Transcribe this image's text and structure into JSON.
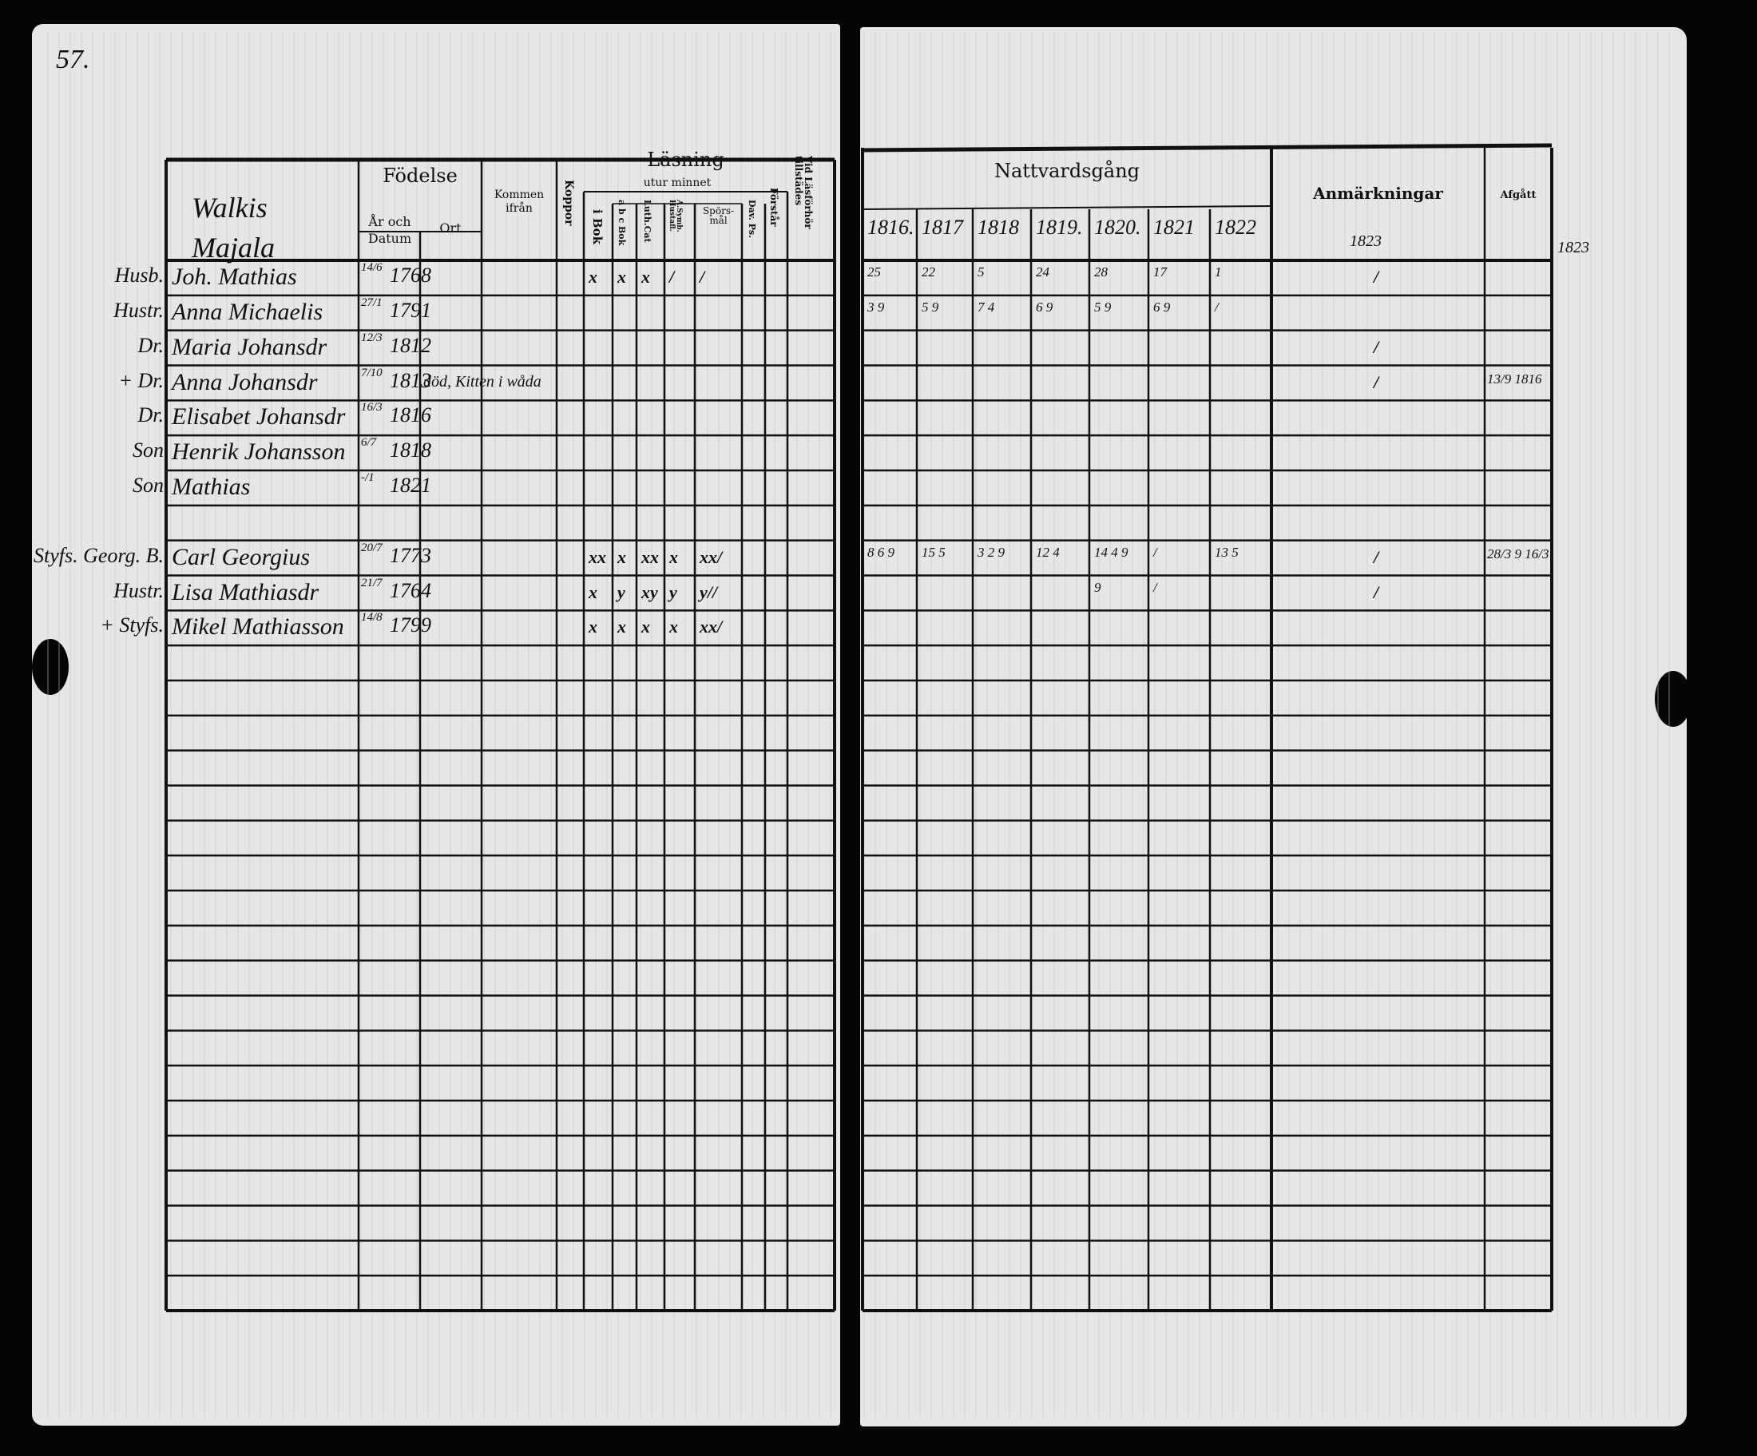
{
  "page_number": "57.",
  "household": "Walkis Majala",
  "left_header": {
    "fodelse": "Födelse",
    "ar_och_datum": "År och Datum",
    "ort": "Ort",
    "kommen_ifran": "Kommen ifrån",
    "koppor": "Koppor",
    "lasning": "Läsning",
    "utur_minnet": "utur minnet",
    "i_bok": "i Bok",
    "abc_bok": "a b c Bok",
    "luth_cat": "Luth.Cat",
    "a_symb": "A.Symb. Hustafl.",
    "sporsmal": "Spörs-mål",
    "dav_ps": "Dav. Ps.",
    "forstar": "Förstår",
    "vid_lasforhor": "Vid Läsförhör tillstädes"
  },
  "right_header": {
    "nattvardsgang": "Nattvardsgång",
    "years": [
      "1816.",
      "1817",
      "1818",
      "1819.",
      "1820.",
      "1821",
      "1822"
    ],
    "anmarkningar": "Anmärkningar",
    "anmarkningar_year": "1823",
    "afgatt": "Afgått",
    "margin_year": "1823"
  },
  "persons": [
    {
      "row": 0,
      "role": "Husb.",
      "name": "Joh. Mathias",
      "date": "14/6",
      "year": "1768",
      "note": "",
      "reading": [
        "x",
        "x",
        "x",
        "/",
        "/"
      ],
      "communion": [
        "25",
        "22",
        "5",
        "24",
        "28",
        "17",
        "1"
      ],
      "remark": "/",
      "left": ""
    },
    {
      "row": 1,
      "role": "Hustr.",
      "name": "Anna Michaelis",
      "date": "27/1",
      "year": "1791",
      "note": "",
      "reading": [],
      "communion": [
        "3 9",
        "5 9",
        "7 4",
        "6 9",
        "5 9",
        "6 9",
        "/"
      ],
      "remark": "",
      "left": ""
    },
    {
      "row": 2,
      "role": "Dr.",
      "name": "Maria Johansdr",
      "date": "12/3",
      "year": "1812",
      "note": "",
      "reading": [],
      "communion": [],
      "remark": "/",
      "left": ""
    },
    {
      "row": 3,
      "role": "+ Dr.",
      "name": "Anna Johansdr",
      "date": "7/10",
      "year": "1813",
      "note": "död, Kitten i wåda",
      "reading": [],
      "communion": [],
      "remark": "/",
      "left": "13/9 1816"
    },
    {
      "row": 4,
      "role": "Dr.",
      "name": "Elisabet Johansdr",
      "date": "16/3",
      "year": "1816",
      "note": "",
      "reading": [],
      "communion": [],
      "remark": "",
      "left": ""
    },
    {
      "row": 5,
      "role": "Son",
      "name": "Henrik Johansson",
      "date": "6/7",
      "year": "1818",
      "note": "",
      "reading": [],
      "communion": [],
      "remark": "",
      "left": ""
    },
    {
      "row": 6,
      "role": "Son",
      "name": "Mathias",
      "date": "-/1",
      "year": "1821",
      "note": "",
      "reading": [],
      "communion": [],
      "remark": "",
      "left": ""
    },
    {
      "row": 8,
      "role": "Styfs. Georg. B.",
      "name": "Carl Georgius",
      "date": "20/7",
      "year": "1773",
      "note": "",
      "reading": [
        "xx",
        "x",
        "xx",
        "x",
        "xx/"
      ],
      "communion": [
        "8 6 9",
        "15 5",
        "3 2 9",
        "12 4",
        "14 4 9",
        "/",
        "13 5"
      ],
      "remark": "/",
      "left": "28/3 9  16/3"
    },
    {
      "row": 9,
      "role": "Hustr.",
      "name": "Lisa Mathiasdr",
      "date": "21/7",
      "year": "1764",
      "note": "",
      "reading": [
        "x",
        "y",
        "xy",
        "y",
        "y//"
      ],
      "communion": [
        "",
        "",
        "",
        "",
        "9",
        "/",
        ""
      ],
      "remark": "/",
      "left": ""
    },
    {
      "row": 10,
      "role": "+ Styfs.",
      "name": "Mikel Mathiasson",
      "date": "14/8",
      "year": "1799",
      "note": "",
      "reading": [
        "x",
        "x",
        "x",
        "x",
        "xx/"
      ],
      "communion": [],
      "remark": "",
      "left": ""
    }
  ]
}
